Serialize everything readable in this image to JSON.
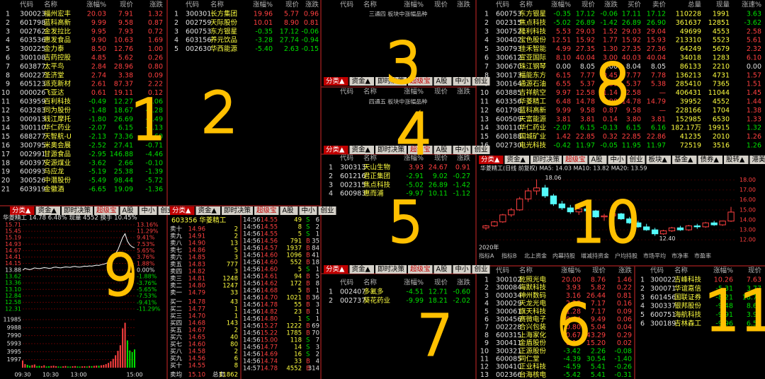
{
  "tabs": [
    "分类▲",
    "资金▲",
    "即时决策",
    "超级宝",
    "A股",
    "中小",
    "创业"
  ],
  "tabs_extra": [
    "板块▲",
    "基金▲",
    "债券▲",
    "股转▲",
    "港美联动"
  ],
  "headers": [
    "代码",
    "名称",
    "涨幅%",
    "现价",
    "涨跌"
  ],
  "panel1": {
    "rows": [
      [
        "1",
        "300023",
        "福州宏丰",
        "20.03",
        "7.91",
        "1.32"
      ],
      [
        "2",
        "601798",
        "蓝科高新",
        "9.99",
        "9.58",
        "0.87"
      ],
      [
        "3",
        "002762",
        "金发拉比",
        "9.95",
        "7.93",
        "0.72"
      ],
      [
        "4",
        "603536",
        "惠发食品",
        "9.90",
        "10.63",
        "1.69"
      ],
      [
        "5",
        "300225",
        "金力泰",
        "8.50",
        "12.76",
        "1.00"
      ],
      [
        "6",
        "300108",
        "吉药控股",
        "4.85",
        "5.62",
        "0.26"
      ],
      [
        "7",
        "603877",
        "太平鸟",
        "2.84",
        "28.96",
        "0.80"
      ],
      [
        "8",
        "600227",
        "圣济堂",
        "2.74",
        "3.38",
        "0.09"
      ],
      [
        "9",
        "605123",
        "派克新材",
        "2.61",
        "87.37",
        "2.22"
      ],
      [
        "10",
        "000026",
        "飞亚达",
        "0.61",
        "19.11",
        "0.12"
      ],
      [
        "11",
        "603959",
        "百利科技",
        "-0.49",
        "12.27",
        "-0.06"
      ],
      [
        "12",
        "603283",
        "同为股份",
        "-1.48",
        "18.67",
        "-0.28"
      ],
      [
        "13",
        "000913",
        "钱江摩托",
        "-1.80",
        "26.69",
        "-0.49"
      ],
      [
        "14",
        "300110",
        "华仁药业",
        "-2.07",
        "6.15",
        "-0.13"
      ],
      [
        "15",
        "688277",
        "天智航-U",
        "-2.13",
        "73.36",
        "-1.60"
      ],
      [
        "16",
        "300795",
        "米奥会展",
        "-2.52",
        "27.41",
        "-0.71"
      ],
      [
        "17",
        "002991",
        "甘源食品",
        "-2.95",
        "146.88",
        "-4.46"
      ],
      [
        "18",
        "600397",
        "安源煤业",
        "-3.62",
        "2.66",
        "-0.10"
      ],
      [
        "19",
        "600993",
        "马应龙",
        "-5.19",
        "25.38",
        "-1.39"
      ],
      [
        "20",
        "300526",
        "中潜股份",
        "-5.49",
        "98.44",
        "-5.72"
      ],
      [
        "21",
        "603919",
        "金徽酒",
        "-6.65",
        "19.09",
        "-1.36"
      ]
    ]
  },
  "panel2": {
    "rows": [
      [
        "1",
        "300301",
        "长方集团",
        "19.96",
        "5.77",
        "0.96"
      ],
      [
        "2",
        "002759",
        "天际股份",
        "10.01",
        "8.90",
        "0.81"
      ],
      [
        "3",
        "600753",
        "东方银星",
        "-0.35",
        "17.12",
        "-0.06"
      ],
      [
        "4",
        "603156",
        "养元饮品",
        "-3.28",
        "27.74",
        "-0.94"
      ],
      [
        "5",
        "002630",
        "华西能源",
        "-5.40",
        "2.63",
        "-0.15"
      ]
    ]
  },
  "panel3": {
    "title": "三通四 板块中涨幅品种"
  },
  "panel4": {
    "title": "四通五 板块中涨幅品种"
  },
  "panel5": {
    "rows": [
      [
        "1",
        "300313",
        "天山生物",
        "3.93",
        "24.67",
        "0.91"
      ],
      [
        "2",
        "601216",
        "君正集团",
        "-2.91",
        "9.02",
        "-0.27"
      ],
      [
        "3",
        "002315",
        "焦点科技",
        "-5.02",
        "26.89",
        "-1.42"
      ],
      [
        "4",
        "600983",
        "惠而浦",
        "-9.97",
        "10.11",
        "-1.12"
      ]
    ]
  },
  "panel7": {
    "rows": [
      [
        "1",
        "002407",
        "多氟多",
        "-4.51",
        "12.71",
        "-0.60"
      ],
      [
        "2",
        "002737",
        "葵花药业",
        "-9.99",
        "18.21",
        "-2.02"
      ]
    ]
  },
  "panel8": {
    "headers": [
      "代码",
      "名称",
      "涨幅%",
      "现价",
      "涨跌",
      "买价",
      "卖价",
      "总量",
      "现量",
      "涨速%"
    ],
    "rows": [
      [
        "1",
        "600753",
        "东方银星",
        "-0.35",
        "17.12",
        "-0.06",
        "17.11",
        "17.12",
        "110228",
        "1991",
        "3.63"
      ],
      [
        "2",
        "002315",
        "焦点科技",
        "-5.02",
        "26.89",
        "-1.42",
        "26.89",
        "26.90",
        "361637",
        "12851",
        "-3.62"
      ],
      [
        "3",
        "300752",
        "隆利科技",
        "5.53",
        "29.03",
        "1.52",
        "29.03",
        "29.04",
        "49699",
        "4553",
        "2.58"
      ],
      [
        "4",
        "300402",
        "宝色股份",
        "12.51",
        "15.92",
        "1.77",
        "15.92",
        "15.93",
        "213310",
        "5523",
        "5.61"
      ],
      [
        "5",
        "300793",
        "佳禾智能",
        "4.99",
        "27.35",
        "1.30",
        "27.35",
        "27.36",
        "64249",
        "5679",
        "2.32"
      ],
      [
        "6",
        "300612",
        "宣亚国际",
        "8.10",
        "40.04",
        "3.00",
        "40.03",
        "40.04",
        "34018",
        "1283",
        "6.10"
      ],
      [
        "7",
        "300670",
        "珠江钢琴",
        "0.00",
        "8.05",
        "0.00",
        "8.04",
        "8.05",
        "86133",
        "2210",
        "0.00"
      ],
      [
        "8",
        "300173",
        "福能东方",
        "6.15",
        "7.77",
        "0.45",
        "7.77",
        "7.78",
        "136213",
        "4731",
        "1.57"
      ],
      [
        "9",
        "300164",
        "通源石油",
        "6.55",
        "5.37",
        "0.33",
        "5.37",
        "5.38",
        "285410",
        "7365",
        "1.51"
      ],
      [
        "10",
        "603885",
        "吉祥航空",
        "9.97",
        "12.58",
        "1.14",
        "12.58",
        "—",
        "406431",
        "11044",
        "1.45"
      ],
      [
        "11",
        "603356",
        "华菱精工",
        "6.48",
        "14.78",
        "0.90",
        "14.78",
        "14.79",
        "39952",
        "4552",
        "1.44"
      ],
      [
        "12",
        "601798",
        "蓝科高新",
        "9.99",
        "9.58",
        "0.87",
        "9.58",
        "—",
        "228166",
        "1704",
        "1.38"
      ],
      [
        "13",
        "600509",
        "天富能源",
        "3.81",
        "3.81",
        "0.14",
        "3.80",
        "3.81",
        "152985",
        "6530",
        "1.33"
      ],
      [
        "14",
        "300110",
        "华仁药业",
        "-2.07",
        "6.15",
        "-0.13",
        "6.15",
        "6.16",
        "182.17万",
        "19915",
        "1.32"
      ],
      [
        "15",
        "600188",
        "国城矿业",
        "1.42",
        "22.85",
        "0.32",
        "22.85",
        "22.86",
        "41235",
        "2010",
        "1.26"
      ],
      [
        "16",
        "002730",
        "电光科技",
        "-0.42",
        "11.97",
        "-0.05",
        "11.95",
        "11.97",
        "72519",
        "3516",
        "1.26"
      ]
    ]
  },
  "panel6": {
    "rows": [
      [
        "1",
        "300102",
        "乾照光电",
        "20.00",
        "8.76",
        "1.46"
      ],
      [
        "2",
        "300084",
        "海默科技",
        "3.93",
        "5.82",
        "0.22"
      ],
      [
        "3",
        "000034",
        "神州数码",
        "3.16",
        "26.44",
        "0.81"
      ],
      [
        "4",
        "300029",
        "天龙光电",
        "2.28",
        "7.17",
        "0.16"
      ],
      [
        "5",
        "300061",
        "旗天科技",
        "1.28",
        "7.17",
        "0.09"
      ],
      [
        "6",
        "300456",
        "赛微电子",
        "0.64",
        "9.49",
        "0.06"
      ],
      [
        "7",
        "002228",
        "合兴包装",
        "0.80",
        "5.04",
        "0.04"
      ],
      [
        "8",
        "600315",
        "上海家化",
        "0.67",
        "43.29",
        "0.29"
      ],
      [
        "9",
        "300411",
        "金盾股份",
        "0.13",
        "15.20",
        "0.02"
      ],
      [
        "10",
        "300321",
        "正源股份",
        "-3.42",
        "2.26",
        "-0.08"
      ],
      [
        "11",
        "600085",
        "同仁堂",
        "-4.39",
        "30.54",
        "-1.40"
      ],
      [
        "12",
        "300410",
        "正业科技",
        "-4.59",
        "5.41",
        "-0.26"
      ],
      [
        "13",
        "002366",
        "台海核电",
        "-5.42",
        "5.41",
        "-0.31"
      ]
    ]
  },
  "panel11": {
    "headers": [
      "代码",
      "名称",
      "涨幅%",
      "现价"
    ],
    "rows": [
      [
        "1",
        "300022",
        "吉峰科技",
        "10.26",
        "7.63"
      ],
      [
        "2",
        "300071",
        "华谊嘉信",
        "-5.31",
        "3.77"
      ],
      [
        "3",
        "601456",
        "国联证券",
        "-8.21",
        "18.70"
      ],
      [
        "4",
        "300337",
        "银邦股份",
        "-9.48",
        "8.69"
      ],
      [
        "5",
        "600751",
        "海航科技",
        "-9.91",
        "3.91"
      ],
      [
        "6",
        "300189",
        "吉林森工",
        "-9.96",
        "6.51"
      ]
    ]
  },
  "intraday": {
    "title": "华菱精工  14.78  6.48%  现量 4552  换手 10.45%",
    "ylim": [
      12.05,
      15.71
    ],
    "yticks": [
      15.71,
      15.45,
      15.19,
      14.93,
      14.67,
      14.41,
      14.15,
      13.88,
      13.62,
      13.36,
      {
        "value": 13.1,
        "label": "13.10"
      },
      12.84,
      12.58,
      12.31
    ],
    "y2lim": [
      -13.16,
      13.16
    ],
    "y2ticks": [
      {
        "value": 13.16,
        "label": "13.16%"
      },
      {
        "value": 11.29,
        "label": "11.29%"
      },
      {
        "value": 9.41,
        "label": "9.41%"
      },
      {
        "value": 7.53,
        "label": "7.53%"
      },
      {
        "value": 5.65,
        "label": "5.65%"
      },
      {
        "value": 3.76,
        "label": "3.76%"
      },
      {
        "value": 1.88,
        "label": "1.88%"
      },
      {
        "value": 0,
        "label": "0.00%"
      },
      {
        "value": -1.88,
        "label": "-1.88%"
      },
      {
        "value": -3.76,
        "label": "-3.76%"
      },
      {
        "value": -5.65,
        "label": "-5.65%"
      },
      {
        "value": -7.53,
        "label": "-7.53%"
      },
      {
        "value": -9.41,
        "label": "-9.41%"
      },
      {
        "value": -11.29,
        "label": "-11.29%"
      }
    ],
    "prices": [
      13.88,
      13.95,
      13.92,
      13.9,
      13.93,
      13.97,
      13.95,
      13.94,
      13.96,
      13.98,
      13.97,
      13.95,
      13.96,
      13.99,
      14.0,
      13.98,
      13.97,
      13.99,
      14.01,
      14.0,
      13.99,
      14.02,
      14.03,
      14.01,
      14.0,
      14.02,
      14.04,
      14.03,
      14.05,
      14.04,
      14.06,
      14.08,
      14.07,
      14.1,
      14.12,
      14.15,
      14.2,
      14.28,
      14.4,
      14.55,
      14.7,
      14.95,
      15.2,
      15.35,
      15.05,
      14.9,
      14.82,
      14.78
    ],
    "vlim": [
      0,
      11985
    ],
    "vticks": [
      11985,
      9988,
      7990,
      5993,
      3995,
      1997
    ],
    "volumes": [
      1800,
      900,
      700,
      500,
      650,
      800,
      400,
      450,
      380,
      600,
      300,
      350,
      420,
      500,
      380,
      300,
      260,
      340,
      420,
      300,
      280,
      350,
      400,
      310,
      280,
      330,
      360,
      300,
      420,
      380,
      450,
      520,
      480,
      600,
      700,
      900,
      1200,
      1600,
      2200,
      3100,
      4200,
      5600,
      9800,
      11200,
      6800,
      4300,
      3900,
      4552
    ],
    "time_labels": [
      "09:30",
      "10:30",
      "13:00",
      "15:00"
    ]
  },
  "order_book": {
    "title": "603356 华菱精工",
    "rows": [
      [
        "卖十",
        "14.96",
        "2"
      ],
      [
        "卖九",
        "14.91",
        "2"
      ],
      [
        "卖八",
        "14.90",
        "13"
      ],
      [
        "卖七",
        "14.86",
        "5"
      ],
      [
        "卖六",
        "14.85",
        "3"
      ],
      [
        "卖五",
        "14.83",
        "777"
      ],
      [
        "卖四",
        "14.82",
        "3"
      ],
      [
        "卖三",
        "14.81",
        "1248"
      ],
      [
        "卖二",
        "14.80",
        "1247"
      ],
      [
        "卖一",
        "14.79",
        "33"
      ],
      [
        "买一",
        "14.78",
        "43"
      ],
      [
        "买二",
        "14.77",
        "1"
      ],
      [
        "买三",
        "14.70",
        "1"
      ],
      [
        "买四",
        "14.68",
        "143"
      ],
      [
        "买五",
        "14.67",
        "2"
      ],
      [
        "买六",
        "14.65",
        "40"
      ],
      [
        "买七",
        "14.60",
        "80"
      ],
      [
        "买八",
        "14.58",
        "2"
      ],
      [
        "买九",
        "14.56",
        "6"
      ],
      [
        "买十",
        "14.55",
        "8"
      ]
    ],
    "footer": [
      "卖均",
      "15.10",
      "总卖",
      "11862"
    ]
  },
  "trades": {
    "rows": [
      [
        "14:56",
        "14.55",
        "49",
        "S",
        "6"
      ],
      [
        "14:56",
        "14.55",
        "8",
        "S",
        "2"
      ],
      [
        "14:56",
        "14.55",
        "5",
        "S",
        "1"
      ],
      [
        "14:56",
        "14.56",
        "791",
        "B",
        "35"
      ],
      [
        "14:56",
        "14.57",
        "1937",
        "B",
        "84"
      ],
      [
        "14:56",
        "14.60",
        "1096",
        "B",
        "41"
      ],
      [
        "14:56",
        "14.60",
        "552",
        "B",
        "18"
      ],
      [
        "14:56",
        "14.60",
        "5",
        "S",
        "1"
      ],
      [
        "14:56",
        "14.61",
        "94",
        "B",
        "5"
      ],
      [
        "14:56",
        "14.62",
        "172",
        "B",
        "8"
      ],
      [
        "14:56",
        "14.68",
        "5",
        "B",
        "1"
      ],
      [
        "14:56",
        "14.70",
        "1021",
        "B",
        "36"
      ],
      [
        "14:56",
        "14.78",
        "55",
        "B",
        "3"
      ],
      [
        "14:56",
        "14.82",
        "23",
        "B",
        "1"
      ],
      [
        "14:56",
        "14.80",
        "1",
        "S",
        "1"
      ],
      [
        "14:56",
        "15.27",
        "1222",
        "B",
        "69"
      ],
      [
        "14:56",
        "15.22",
        "1785",
        "B",
        "70"
      ],
      [
        "14:56",
        "15.00",
        "118",
        "S",
        "7"
      ],
      [
        "14:56",
        "14.77",
        "14",
        "S",
        "3"
      ],
      [
        "14:56",
        "14.69",
        "16",
        "S",
        "2"
      ],
      [
        "14:56",
        "14.74",
        "33",
        "B",
        "4"
      ],
      [
        "14:57",
        "14.78",
        "4552",
        "B",
        "314"
      ]
    ]
  },
  "kline": {
    "title": "华菱精工(日线 前复权)  MA5: 14.03  MA10: 13.82  MA20: 13.59",
    "ylim": [
      11.8,
      18.6
    ],
    "yticks": [
      {
        "value": 18,
        "label": "18.00"
      },
      {
        "value": 17,
        "label": "17.00"
      },
      {
        "value": 16,
        "label": "16.00"
      },
      {
        "value": 15,
        "label": "15.00"
      },
      {
        "value": 14,
        "label": "14.00"
      },
      {
        "value": 13,
        "label": "13.00"
      },
      {
        "value": 12,
        "label": "12.00"
      }
    ],
    "candles": [
      [
        13.2,
        13.5,
        13.0,
        13.4
      ],
      [
        13.4,
        13.9,
        13.3,
        13.8
      ],
      [
        13.8,
        14.6,
        13.7,
        14.5
      ],
      [
        14.5,
        15.2,
        14.3,
        15.0
      ],
      [
        15.0,
        16.3,
        14.9,
        16.1
      ],
      [
        16.1,
        17.2,
        15.8,
        16.9
      ],
      [
        16.9,
        18.06,
        16.5,
        17.2
      ],
      [
        17.2,
        17.5,
        16.2,
        16.4
      ],
      [
        16.4,
        16.6,
        15.4,
        15.6
      ],
      [
        15.6,
        15.9,
        15.0,
        15.2
      ],
      [
        15.2,
        15.5,
        14.6,
        14.8
      ],
      [
        14.8,
        15.3,
        14.5,
        15.1
      ],
      [
        15.1,
        15.4,
        14.7,
        14.9
      ],
      [
        14.9,
        15.0,
        14.2,
        14.3
      ],
      [
        14.3,
        14.6,
        13.9,
        14.4
      ],
      [
        14.4,
        14.8,
        14.2,
        14.6
      ],
      [
        14.6,
        14.7,
        14.0,
        14.1
      ],
      [
        14.1,
        14.3,
        13.6,
        13.7
      ],
      [
        13.7,
        13.9,
        13.2,
        13.3
      ],
      [
        13.3,
        13.6,
        12.9,
        13.0
      ],
      [
        13.0,
        13.2,
        12.4,
        12.6
      ],
      [
        12.6,
        13.0,
        12.5,
        12.9
      ],
      [
        12.9,
        13.3,
        12.8,
        13.2
      ],
      [
        13.2,
        13.4,
        12.9,
        13.0
      ],
      [
        13.0,
        13.5,
        12.9,
        13.4
      ],
      [
        13.4,
        13.6,
        13.1,
        13.3
      ],
      [
        13.3,
        13.8,
        13.2,
        13.7
      ],
      [
        13.7,
        13.9,
        13.4,
        13.5
      ],
      [
        13.5,
        13.9,
        13.4,
        13.88
      ],
      [
        13.88,
        15.3,
        13.8,
        14.78
      ]
    ],
    "labels": [
      "18.06",
      "12.40",
      "2020年"
    ],
    "tabs": [
      "指标A",
      "指标B",
      "北上资金",
      "内幕持股",
      "增减持资金",
      "户均持股",
      "市场平均",
      "市净率",
      "市盈率"
    ]
  },
  "annotations": [
    "1",
    "2",
    "3",
    "4",
    "5",
    "6",
    "7",
    "8",
    "9",
    "10",
    "11"
  ]
}
